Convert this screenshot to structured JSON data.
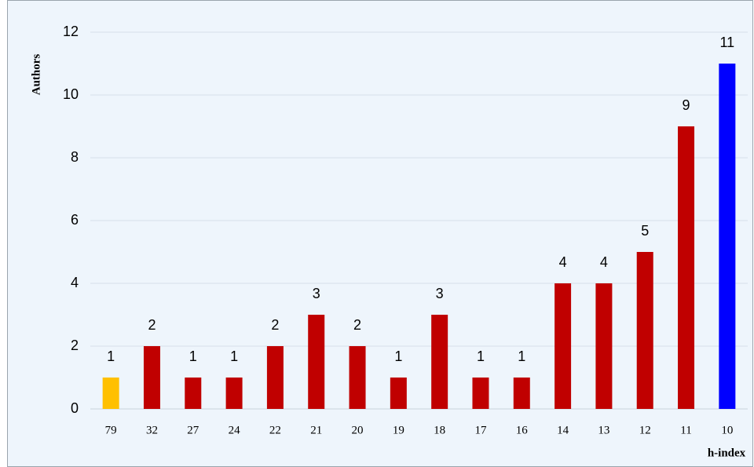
{
  "chart_data": {
    "type": "bar",
    "x_label": "h-index",
    "y_label": "Authors",
    "categories": [
      "79",
      "32",
      "27",
      "24",
      "22",
      "21",
      "20",
      "19",
      "18",
      "17",
      "16",
      "14",
      "13",
      "12",
      "11",
      "10"
    ],
    "values": [
      1,
      2,
      1,
      1,
      2,
      3,
      2,
      1,
      3,
      1,
      1,
      4,
      4,
      5,
      9,
      11
    ],
    "colors": [
      "#ffc000",
      "#c00000",
      "#c00000",
      "#c00000",
      "#c00000",
      "#c00000",
      "#c00000",
      "#c00000",
      "#c00000",
      "#c00000",
      "#c00000",
      "#c00000",
      "#c00000",
      "#c00000",
      "#c00000",
      "#0000ff"
    ],
    "ylim": [
      0,
      12
    ],
    "yticks": [
      0,
      2,
      4,
      6,
      8,
      10,
      12
    ],
    "grid": true
  }
}
